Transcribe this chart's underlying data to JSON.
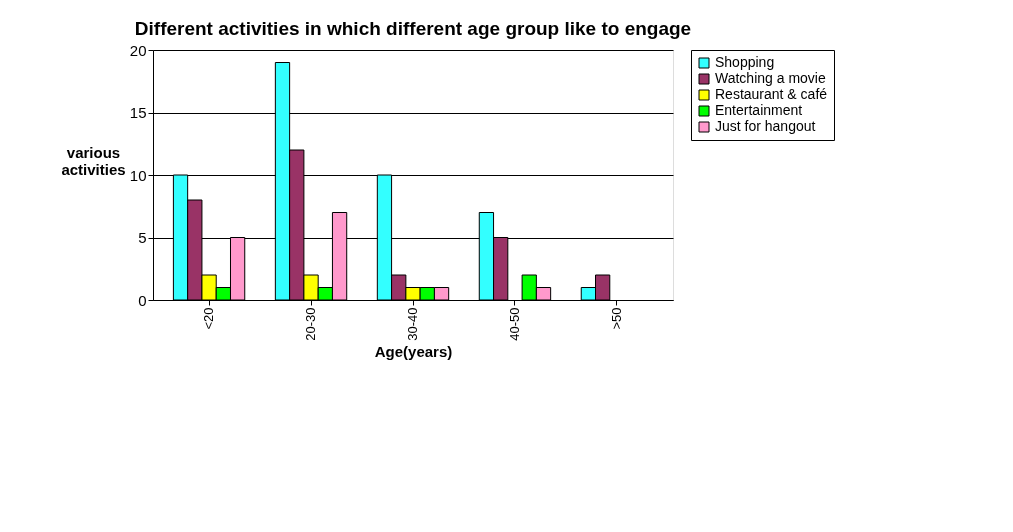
{
  "chart_data": {
    "type": "bar",
    "title": "Different activities in which different age  group like to engage",
    "xlabel": "Age(years)",
    "ylabel": "various activities",
    "categories": [
      "<20",
      "20-30",
      "30-40",
      "40-50",
      ">50"
    ],
    "series": [
      {
        "name": "Shopping",
        "color": "#33ffff",
        "values": [
          10,
          19,
          10,
          7,
          1
        ]
      },
      {
        "name": "Watching a movie",
        "color": "#993366",
        "values": [
          8,
          12,
          2,
          5,
          2
        ]
      },
      {
        "name": "Restaurant & café",
        "color": "#ffff00",
        "values": [
          2,
          2,
          1,
          0,
          0
        ]
      },
      {
        "name": "Entertainment",
        "color": "#00ff00",
        "values": [
          1,
          1,
          1,
          2,
          0
        ]
      },
      {
        "name": "Just for hangout",
        "color": "#ff99cc",
        "values": [
          5,
          7,
          1,
          1,
          0
        ]
      }
    ],
    "ylim": [
      0,
      20
    ],
    "yticks": [
      0,
      5,
      10,
      15,
      20
    ],
    "grid": "y",
    "legend": "right"
  }
}
